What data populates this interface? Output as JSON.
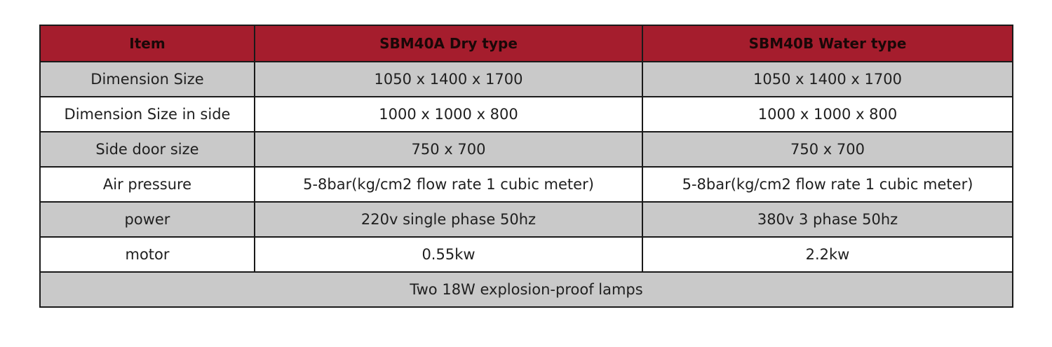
{
  "table": {
    "headers": [
      "Item",
      "SBM40A Dry type",
      "SBM40B Water type"
    ],
    "rows": [
      [
        "Dimension Size",
        "1050 x 1400 x 1700",
        "1050 x 1400 x 1700"
      ],
      [
        "Dimension Size in side",
        "1000 x 1000 x 800",
        "1000 x 1000 x 800"
      ],
      [
        "Side door size",
        "750 x 700",
        "750 x 700"
      ],
      [
        "Air pressure",
        "5-8bar(kg/cm2 flow rate 1 cubic meter)",
        "5-8bar(kg/cm2 flow rate 1 cubic meter)"
      ],
      [
        "power",
        "220v single phase 50hz",
        "380v 3 phase 50hz"
      ],
      [
        "motor",
        "0.55kw",
        "2.2kw"
      ]
    ],
    "footer": "Two 18W explosion-proof lamps"
  },
  "colors": {
    "header_bg": "#a51d2d",
    "shaded_row_bg": "#c9c9c9",
    "plain_row_bg": "#ffffff",
    "border": "#1a1a1a"
  }
}
